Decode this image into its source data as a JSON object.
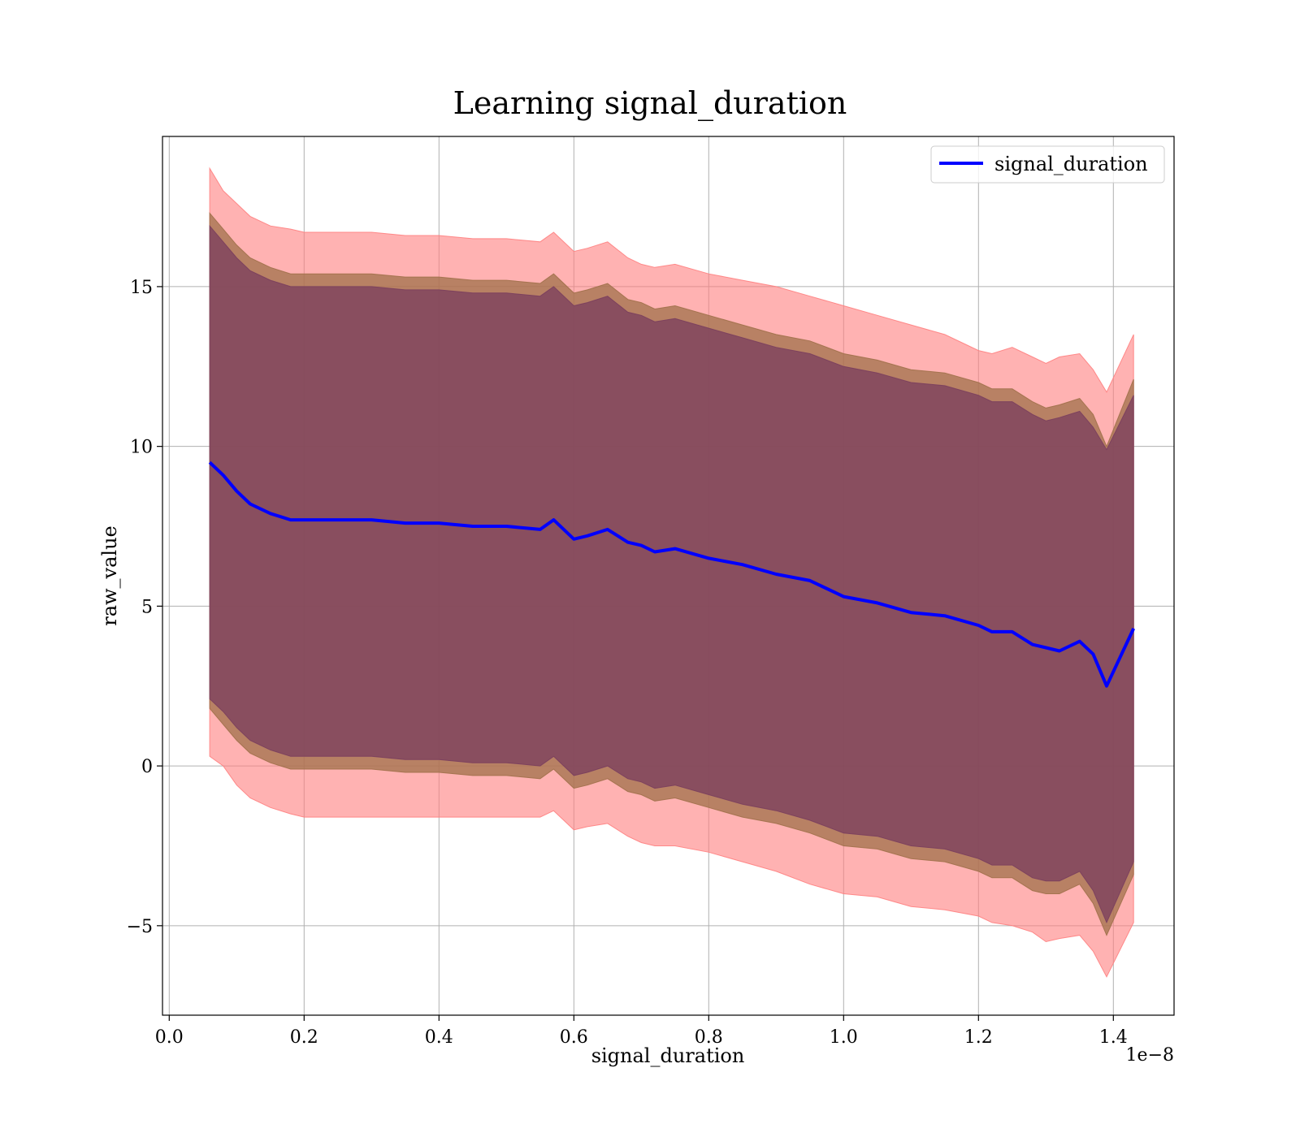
{
  "chart_data": {
    "type": "area",
    "title": "Learning signal_duration",
    "xlabel": "signal_duration",
    "ylabel": "raw_value",
    "x_offset_label": "1e−8",
    "xlim": [
      -0.01,
      1.49
    ],
    "ylim": [
      -7.8,
      19.7
    ],
    "xticks": [
      0.0,
      0.2,
      0.4,
      0.6,
      0.8,
      1.0,
      1.2,
      1.4
    ],
    "xtick_labels": [
      "0.0",
      "0.2",
      "0.4",
      "0.6",
      "0.8",
      "1.0",
      "1.2",
      "1.4"
    ],
    "yticks": [
      -5,
      0,
      5,
      10,
      15
    ],
    "ytick_labels": [
      "−5",
      "0",
      "5",
      "10",
      "15"
    ],
    "grid": true,
    "legend": {
      "placement": "top-right",
      "entries": [
        "signal_duration"
      ]
    },
    "colors": {
      "line": "#0000ff",
      "band_outer": "#ff7f7f",
      "band_middle": "#a0704a",
      "band_inner": "#7a3e5e"
    },
    "x": [
      0.06,
      0.08,
      0.1,
      0.12,
      0.15,
      0.18,
      0.2,
      0.25,
      0.3,
      0.35,
      0.4,
      0.45,
      0.5,
      0.55,
      0.57,
      0.6,
      0.62,
      0.65,
      0.68,
      0.7,
      0.72,
      0.75,
      0.8,
      0.85,
      0.9,
      0.95,
      1.0,
      1.05,
      1.1,
      1.15,
      1.2,
      1.22,
      1.25,
      1.28,
      1.3,
      1.32,
      1.35,
      1.37,
      1.39,
      1.43
    ],
    "series": [
      {
        "name": "signal_duration",
        "values": [
          9.5,
          9.1,
          8.6,
          8.2,
          7.9,
          7.7,
          7.7,
          7.7,
          7.7,
          7.6,
          7.6,
          7.5,
          7.5,
          7.4,
          7.7,
          7.1,
          7.2,
          7.4,
          7.0,
          6.9,
          6.7,
          6.8,
          6.5,
          6.3,
          6.0,
          5.8,
          5.3,
          5.1,
          4.8,
          4.7,
          4.4,
          4.2,
          4.2,
          3.8,
          3.7,
          3.6,
          3.9,
          3.5,
          2.5,
          4.3
        ]
      },
      {
        "name": "",
        "role": "band_outer",
        "upper": [
          18.7,
          18.0,
          17.6,
          17.2,
          16.9,
          16.8,
          16.7,
          16.7,
          16.7,
          16.6,
          16.6,
          16.5,
          16.5,
          16.4,
          16.7,
          16.1,
          16.2,
          16.4,
          15.9,
          15.7,
          15.6,
          15.7,
          15.4,
          15.2,
          15.0,
          14.7,
          14.4,
          14.1,
          13.8,
          13.5,
          13.0,
          12.9,
          13.1,
          12.8,
          12.6,
          12.8,
          12.9,
          12.4,
          11.7,
          13.5
        ],
        "lower": [
          0.3,
          0.0,
          -0.6,
          -1.0,
          -1.3,
          -1.5,
          -1.6,
          -1.6,
          -1.6,
          -1.6,
          -1.6,
          -1.6,
          -1.6,
          -1.6,
          -1.4,
          -2.0,
          -1.9,
          -1.8,
          -2.2,
          -2.4,
          -2.5,
          -2.5,
          -2.7,
          -3.0,
          -3.3,
          -3.7,
          -4.0,
          -4.1,
          -4.4,
          -4.5,
          -4.7,
          -4.9,
          -5.0,
          -5.2,
          -5.5,
          -5.4,
          -5.3,
          -5.8,
          -6.6,
          -4.9
        ]
      },
      {
        "name": "",
        "role": "band_middle",
        "upper": [
          17.3,
          16.8,
          16.3,
          15.9,
          15.6,
          15.4,
          15.4,
          15.4,
          15.4,
          15.3,
          15.3,
          15.2,
          15.2,
          15.1,
          15.4,
          14.8,
          14.9,
          15.1,
          14.6,
          14.5,
          14.3,
          14.4,
          14.1,
          13.8,
          13.5,
          13.3,
          12.9,
          12.7,
          12.4,
          12.3,
          12.0,
          11.8,
          11.8,
          11.4,
          11.2,
          11.3,
          11.5,
          11.0,
          10.0,
          12.1
        ],
        "lower": [
          1.8,
          1.3,
          0.8,
          0.4,
          0.1,
          -0.1,
          -0.1,
          -0.1,
          -0.1,
          -0.2,
          -0.2,
          -0.3,
          -0.3,
          -0.4,
          -0.1,
          -0.7,
          -0.6,
          -0.4,
          -0.8,
          -0.9,
          -1.1,
          -1.0,
          -1.3,
          -1.6,
          -1.8,
          -2.1,
          -2.5,
          -2.6,
          -2.9,
          -3.0,
          -3.3,
          -3.5,
          -3.5,
          -3.9,
          -4.0,
          -4.0,
          -3.7,
          -4.3,
          -5.3,
          -3.4
        ]
      },
      {
        "name": "",
        "role": "band_inner",
        "upper": [
          16.9,
          16.4,
          15.9,
          15.5,
          15.2,
          15.0,
          15.0,
          15.0,
          15.0,
          14.9,
          14.9,
          14.8,
          14.8,
          14.7,
          15.0,
          14.4,
          14.5,
          14.7,
          14.2,
          14.1,
          13.9,
          14.0,
          13.7,
          13.4,
          13.1,
          12.9,
          12.5,
          12.3,
          12.0,
          11.9,
          11.6,
          11.4,
          11.4,
          11.0,
          10.8,
          10.9,
          11.1,
          10.6,
          9.9,
          11.6
        ],
        "lower": [
          2.1,
          1.7,
          1.2,
          0.8,
          0.5,
          0.3,
          0.3,
          0.3,
          0.3,
          0.2,
          0.2,
          0.1,
          0.1,
          0.0,
          0.3,
          -0.3,
          -0.2,
          0.0,
          -0.4,
          -0.5,
          -0.7,
          -0.6,
          -0.9,
          -1.2,
          -1.4,
          -1.7,
          -2.1,
          -2.2,
          -2.5,
          -2.6,
          -2.9,
          -3.1,
          -3.1,
          -3.5,
          -3.6,
          -3.6,
          -3.3,
          -3.9,
          -4.9,
          -3.0
        ]
      }
    ]
  }
}
